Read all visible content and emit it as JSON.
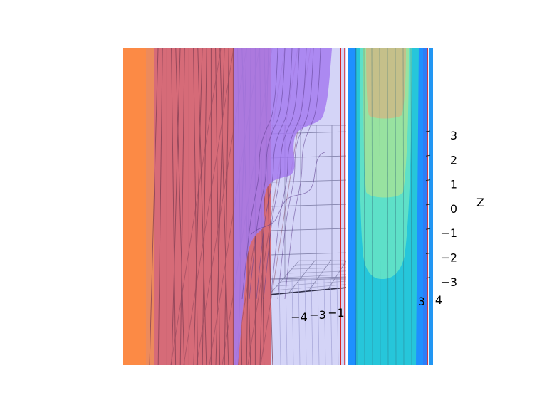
{
  "chart_data": {
    "type": "surface",
    "title": "",
    "xlabel": "",
    "ylabel": "",
    "zlabel": "Z",
    "ylim": [
      -4,
      4
    ],
    "zlim": [
      -3,
      3
    ],
    "ticks": {
      "z": [
        "3",
        "2",
        "1",
        "0",
        "−1",
        "−2",
        "−3"
      ],
      "y": [
        "−4",
        "−3",
        "−1",
        "3",
        "4"
      ]
    },
    "grid": true,
    "legend": "none",
    "surfaces": [
      {
        "color": "#ff7f0e",
        "style": "solid"
      },
      {
        "color": "#d9606d",
        "style": "wireframe-dense"
      },
      {
        "color": "#9b6af0",
        "style": "sigmoid-steps"
      },
      {
        "color": "#c8c8f5",
        "style": "translucent-box"
      },
      {
        "color": "#21bde0",
        "style": "filled-contour"
      }
    ],
    "contour_levels": [
      "#1e90ff",
      "#26c6da",
      "#5ee0c8",
      "#98e2a0",
      "#c5c08a"
    ]
  }
}
